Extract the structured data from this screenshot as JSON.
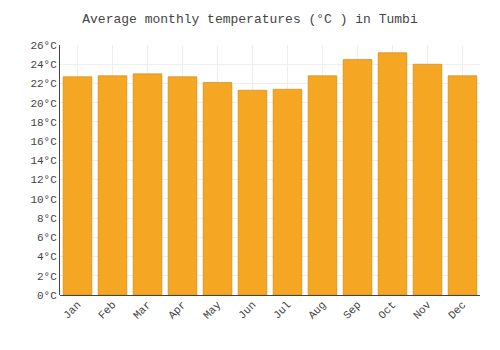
{
  "chart_data": {
    "type": "bar",
    "title": "Average monthly temperatures (°C ) in Tumbi",
    "categories": [
      "Jan",
      "Feb",
      "Mar",
      "Apr",
      "May",
      "Jun",
      "Jul",
      "Aug",
      "Sep",
      "Oct",
      "Nov",
      "Dec"
    ],
    "values": [
      22.7,
      22.8,
      23.0,
      22.7,
      22.1,
      21.3,
      21.4,
      22.8,
      24.5,
      25.2,
      24.0,
      22.8
    ],
    "color": "#F5A623",
    "ylim": [
      0,
      26
    ],
    "yticks": [
      {
        "value": 0,
        "label": "0°C"
      },
      {
        "value": 2,
        "label": "2°C"
      },
      {
        "value": 4,
        "label": "4°C"
      },
      {
        "value": 6,
        "label": "6°C"
      },
      {
        "value": 8,
        "label": "8°C"
      },
      {
        "value": 10,
        "label": "10°C"
      },
      {
        "value": 12,
        "label": "12°C"
      },
      {
        "value": 14,
        "label": "14°C"
      },
      {
        "value": 16,
        "label": "16°C"
      },
      {
        "value": 18,
        "label": "18°C"
      },
      {
        "value": 20,
        "label": "20°C"
      },
      {
        "value": 22,
        "label": "22°C"
      },
      {
        "value": 24,
        "label": "24°C"
      },
      {
        "value": 26,
        "label": "26°C"
      }
    ],
    "grid": true
  }
}
